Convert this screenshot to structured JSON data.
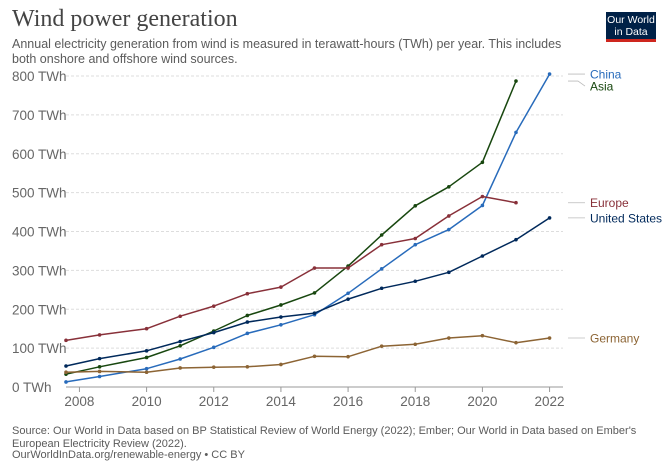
{
  "logo": {
    "line1": "Our World",
    "line2": "in Data"
  },
  "footer": {
    "source": "Source: Our World in Data based on BP Statistical Review of World Energy (2022); Ember; Our World in Data based on Ember's European Electricity Review (2022).",
    "url": "OurWorldInData.org/renewable-energy • CC BY"
  },
  "chart_data": {
    "type": "line",
    "title": "Wind power generation",
    "subtitle": "Annual electricity generation from wind is measured in terawatt-hours (TWh) per year. This includes both onshore and offshore wind sources.",
    "xlabel": "",
    "ylabel": "",
    "xlim": [
      2007.6,
      2022.4
    ],
    "ylim": [
      0,
      800
    ],
    "x_ticks": [
      2008,
      2010,
      2012,
      2014,
      2016,
      2018,
      2020,
      2022
    ],
    "y_ticks": [
      0,
      100,
      200,
      300,
      400,
      500,
      600,
      700,
      800
    ],
    "y_unit": "TWh",
    "grid": "horizontal dashed",
    "legend": "labels at line ends, right",
    "series": [
      {
        "name": "China",
        "color": "#286bbb",
        "points": [
          [
            2007.6,
            13
          ],
          [
            2008.6,
            27
          ],
          [
            2010,
            47
          ],
          [
            2011,
            72
          ],
          [
            2012,
            102
          ],
          [
            2013,
            138
          ],
          [
            2014,
            160
          ],
          [
            2015,
            186
          ],
          [
            2016,
            241
          ],
          [
            2017,
            304
          ],
          [
            2018,
            366
          ],
          [
            2019,
            405
          ],
          [
            2020,
            467
          ],
          [
            2021,
            655
          ],
          [
            2022,
            805
          ]
        ]
      },
      {
        "name": "Asia",
        "color": "#18470f",
        "points": [
          [
            2007.6,
            33
          ],
          [
            2008.6,
            52
          ],
          [
            2010,
            76
          ],
          [
            2011,
            106
          ],
          [
            2012,
            144
          ],
          [
            2013,
            184
          ],
          [
            2014,
            211
          ],
          [
            2015,
            242
          ],
          [
            2016,
            311
          ],
          [
            2017,
            391
          ],
          [
            2018,
            466
          ],
          [
            2019,
            515
          ],
          [
            2020,
            578
          ],
          [
            2021,
            787
          ]
        ]
      },
      {
        "name": "Europe",
        "color": "#883039",
        "points": [
          [
            2007.6,
            120
          ],
          [
            2008.6,
            134
          ],
          [
            2010,
            150
          ],
          [
            2011,
            182
          ],
          [
            2012,
            208
          ],
          [
            2013,
            240
          ],
          [
            2014,
            257
          ],
          [
            2015,
            306
          ],
          [
            2016,
            306
          ],
          [
            2017,
            366
          ],
          [
            2018,
            382
          ],
          [
            2019,
            440
          ],
          [
            2020,
            490
          ],
          [
            2021,
            474
          ]
        ]
      },
      {
        "name": "United States",
        "color": "#00295b",
        "points": [
          [
            2007.6,
            54
          ],
          [
            2008.6,
            73
          ],
          [
            2010,
            93
          ],
          [
            2011,
            117
          ],
          [
            2012,
            140
          ],
          [
            2013,
            167
          ],
          [
            2014,
            180
          ],
          [
            2015,
            190
          ],
          [
            2016,
            226
          ],
          [
            2017,
            254
          ],
          [
            2018,
            272
          ],
          [
            2019,
            295
          ],
          [
            2020,
            337
          ],
          [
            2021,
            379
          ],
          [
            2022,
            435
          ]
        ]
      },
      {
        "name": "Germany",
        "color": "#8c6434",
        "points": [
          [
            2007.6,
            38
          ],
          [
            2008.6,
            40
          ],
          [
            2010,
            38
          ],
          [
            2011,
            49
          ],
          [
            2012,
            51
          ],
          [
            2013,
            52
          ],
          [
            2014,
            58
          ],
          [
            2015,
            79
          ],
          [
            2016,
            78
          ],
          [
            2017,
            105
          ],
          [
            2018,
            110
          ],
          [
            2019,
            126
          ],
          [
            2020,
            132
          ],
          [
            2021,
            114
          ],
          [
            2022,
            126
          ]
        ]
      }
    ]
  }
}
